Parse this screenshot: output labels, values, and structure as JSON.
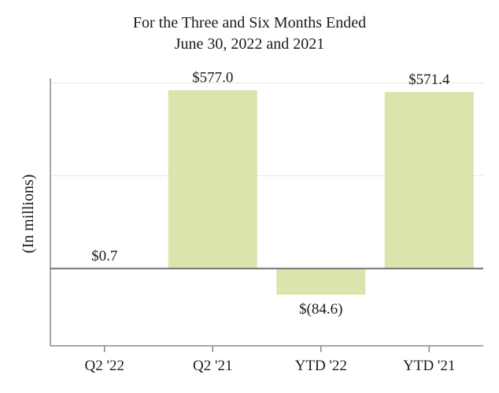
{
  "chart_data": {
    "type": "bar",
    "title_lines": [
      "For the Three and Six Months Ended",
      "June 30, 2022 and 2021"
    ],
    "ylabel": "(In millions)",
    "xlabel": "",
    "categories": [
      "Q2 '22",
      "Q2 '21",
      "YTD '22",
      "YTD '21"
    ],
    "values": [
      0.7,
      577.0,
      -84.6,
      571.4
    ],
    "data_labels": [
      "$0.7",
      "$577.0",
      "$(84.6)",
      "$571.4"
    ],
    "ylim": [
      -250,
      650
    ],
    "gridlines": [
      300,
      600
    ],
    "grid": true,
    "legend": "none",
    "bar_color": "#dce4ad",
    "zero_line_color": "#6e6e6e"
  }
}
